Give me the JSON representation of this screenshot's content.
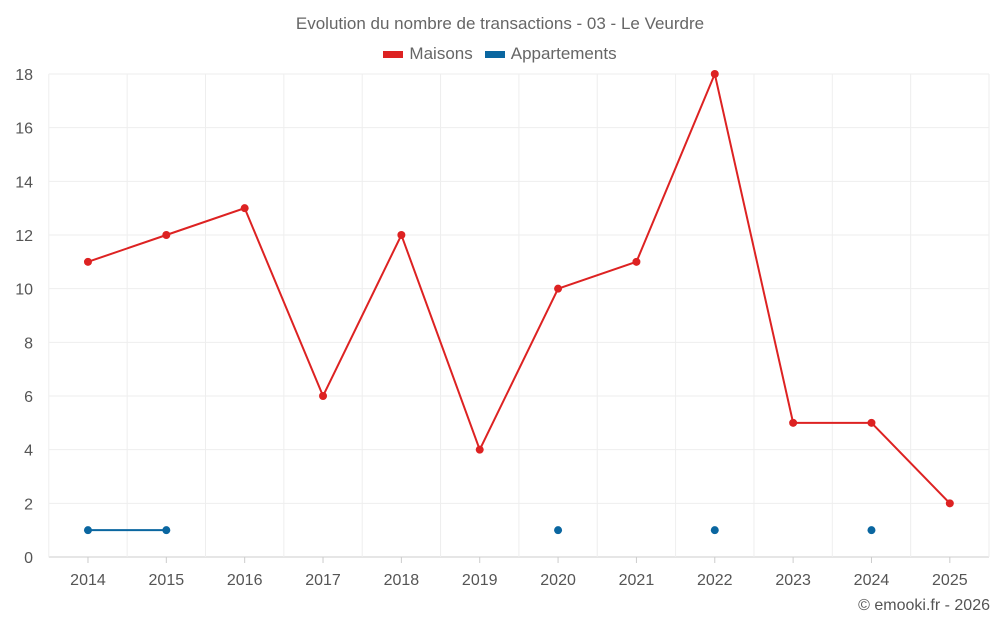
{
  "chart_data": {
    "type": "line",
    "title": "Evolution du nombre de transactions - 03 - Le Veurdre",
    "categories": [
      "2014",
      "2015",
      "2016",
      "2017",
      "2018",
      "2019",
      "2020",
      "2021",
      "2022",
      "2023",
      "2024",
      "2025"
    ],
    "series": [
      {
        "name": "Maisons",
        "color": "#dd2222",
        "values": [
          11,
          12,
          13,
          6,
          12,
          4,
          10,
          11,
          18,
          5,
          5,
          2
        ]
      },
      {
        "name": "Appartements",
        "color": "#0a66a0",
        "values": [
          1,
          1,
          null,
          null,
          null,
          null,
          1,
          null,
          1,
          null,
          1,
          null
        ]
      }
    ],
    "ylim": [
      0,
      18
    ],
    "yticks": [
      0,
      2,
      4,
      6,
      8,
      10,
      12,
      14,
      16,
      18
    ],
    "grid": true,
    "legend": "top-center",
    "xlabel": "",
    "ylabel": ""
  },
  "credit": "© emooki.fr - 2026"
}
